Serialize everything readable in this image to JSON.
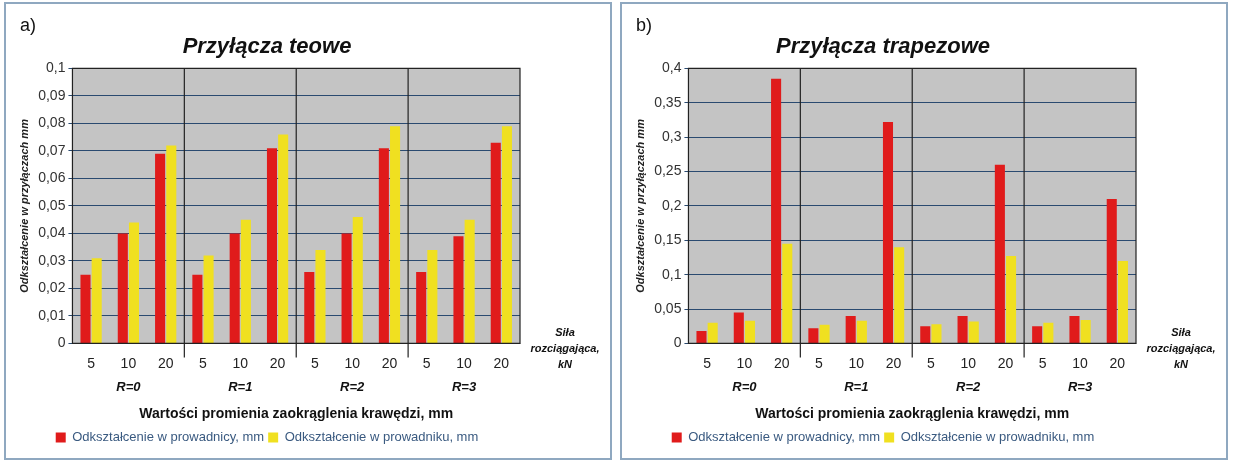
{
  "chart_data": [
    {
      "type": "bar",
      "title": "Przyłącza teowe",
      "xlabel": "Wartości promienia zaokrąglenia krawędzi, mm",
      "ylabel": "Odkształcenie w przyłączach mm",
      "categories": [
        "5",
        "10",
        "20",
        "5",
        "10",
        "20",
        "5",
        "10",
        "20",
        "5",
        "10",
        "20"
      ],
      "series": [
        {
          "name": "Odkształcenie w prowadnicy, mm",
          "color": "#e01b1b",
          "values": [
            0.025,
            0.04,
            0.069,
            0.025,
            0.04,
            0.071,
            0.026,
            0.04,
            0.071,
            0.026,
            0.039,
            0.073
          ]
        },
        {
          "name": "Odkształcenie w prowadniku, mm",
          "color": "#f0e020",
          "values": [
            0.031,
            0.044,
            0.072,
            0.032,
            0.045,
            0.076,
            0.034,
            0.046,
            0.079,
            0.034,
            0.045,
            0.079
          ]
        }
      ],
      "ylim": [
        0,
        0.1
      ],
      "yticks": [
        {
          "value": 0,
          "label": "0"
        },
        {
          "value": 0.01,
          "label": "0,01"
        },
        {
          "value": 0.02,
          "label": "0,02"
        },
        {
          "value": 0.03,
          "label": "0,03"
        },
        {
          "value": 0.04,
          "label": "0,04"
        },
        {
          "value": 0.05,
          "label": "0,05"
        },
        {
          "value": 0.06,
          "label": "0,06"
        },
        {
          "value": 0.07,
          "label": "0,07"
        },
        {
          "value": 0.08,
          "label": "0,08"
        },
        {
          "value": 0.09,
          "label": "0,09"
        },
        {
          "value": 0.1,
          "label": "0,1"
        }
      ],
      "grid": "y",
      "legend": "bottom",
      "annotations": [
        "a)",
        "R=0",
        "R=1",
        "R=2",
        "R=3",
        "Siła rozciągająca, kN"
      ]
    },
    {
      "type": "bar",
      "title": "Przyłącza trapezowe",
      "xlabel": "Wartości promienia zaokrąglenia krawędzi, mm",
      "ylabel": "Odkształcenie w przyłączach mm",
      "categories": [
        "5",
        "10",
        "20",
        "5",
        "10",
        "20",
        "5",
        "10",
        "20",
        "5",
        "10",
        "20"
      ],
      "series": [
        {
          "name": "Odkształcenie w prowadnicy, mm",
          "color": "#e01b1b",
          "values": [
            0.018,
            0.045,
            0.385,
            0.022,
            0.04,
            0.322,
            0.025,
            0.04,
            0.26,
            0.025,
            0.04,
            0.21
          ]
        },
        {
          "name": "Odkształcenie w prowadniku, mm",
          "color": "#f0e020",
          "values": [
            0.03,
            0.033,
            0.145,
            0.027,
            0.033,
            0.14,
            0.028,
            0.032,
            0.127,
            0.03,
            0.034,
            0.12
          ]
        }
      ],
      "ylim": [
        0,
        0.4
      ],
      "yticks": [
        {
          "value": 0,
          "label": "0"
        },
        {
          "value": 0.05,
          "label": "0,05"
        },
        {
          "value": 0.1,
          "label": "0,1"
        },
        {
          "value": 0.15,
          "label": "0,15"
        },
        {
          "value": 0.2,
          "label": "0,2"
        },
        {
          "value": 0.25,
          "label": "0,25"
        },
        {
          "value": 0.3,
          "label": "0,3"
        },
        {
          "value": 0.35,
          "label": "0,35"
        },
        {
          "value": 0.4,
          "label": "0,4"
        }
      ],
      "grid": "y",
      "legend": "bottom",
      "annotations": [
        "b)",
        "R=0",
        "R=1",
        "R=2",
        "R=3",
        "Siła rozciągająca, kN"
      ]
    }
  ]
}
